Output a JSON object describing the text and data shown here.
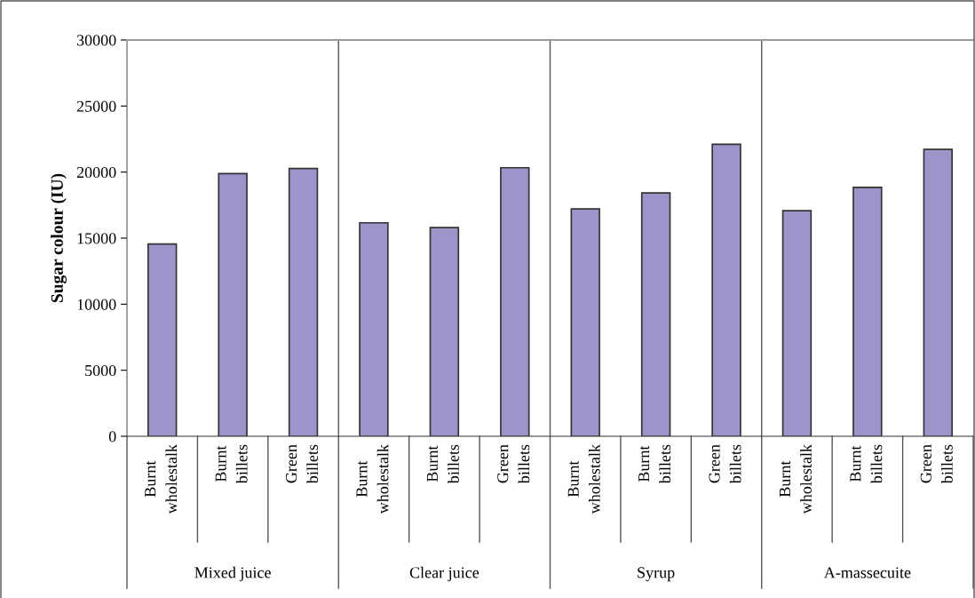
{
  "chart_data": {
    "type": "bar",
    "ylabel": "Sugar colour (IU)",
    "categories": [
      "Burnt\nwholestalk",
      "Burnt\nbillets",
      "Green\nbillets",
      "Burnt\nwholestalk",
      "Burnt\nbillets",
      "Green\nbillets",
      "Burnt\nwholestalk",
      "Burnt\nbillets",
      "Green\nbillets",
      "Burnt\nwholestalk",
      "Burnt\nbillets",
      "Green\nbillets"
    ],
    "annotations": [
      "Mixed juice",
      "Clear juice",
      "Syrup",
      "A-massecuite"
    ],
    "values": [
      14550,
      19890,
      20270,
      16160,
      15800,
      20330,
      17210,
      18420,
      22100,
      17080,
      18840,
      21720
    ],
    "color": "#9b95c9",
    "ylim": [
      0,
      30000
    ],
    "yticks": [
      0,
      5000,
      10000,
      15000,
      20000,
      25000,
      30000
    ],
    "grid": false
  }
}
